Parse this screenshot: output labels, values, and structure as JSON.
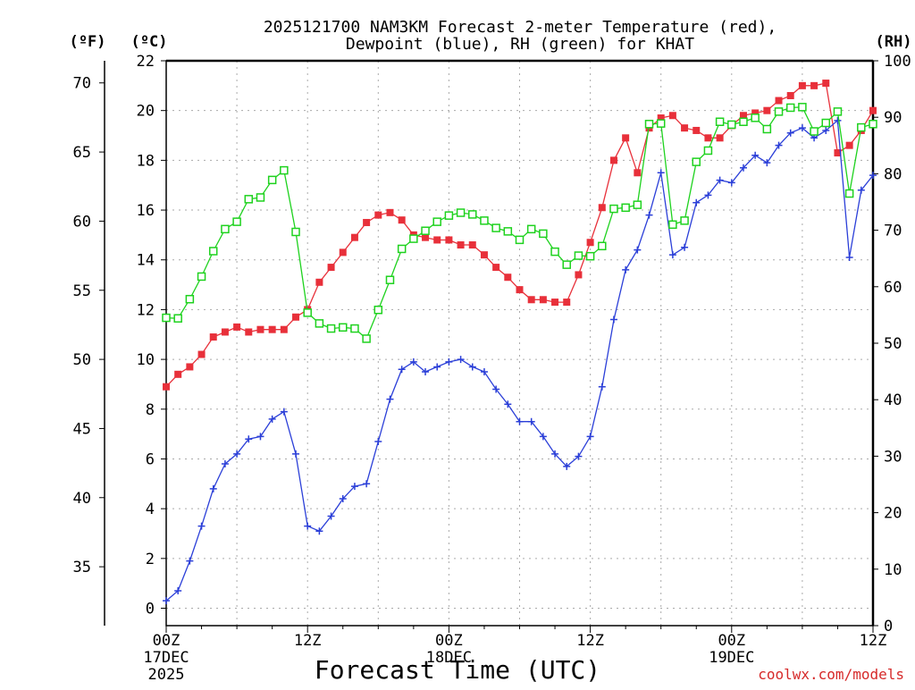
{
  "chart_data": {
    "type": "line",
    "title": "2025121700 NAM3KM Forecast 2-meter Temperature (red),",
    "subtitle": "Dewpoint (blue), RH (green) for KHAT",
    "xlabel": "Forecast Time (UTC)",
    "credit": "coolwx.com/models",
    "units": {
      "f": "(ºF)",
      "c": "(ºC)",
      "rh": "(RH)"
    },
    "x_ticks": [
      {
        "hour": 0,
        "lines": [
          "00Z",
          "17DEC",
          "2025"
        ]
      },
      {
        "hour": 12,
        "lines": [
          "12Z"
        ]
      },
      {
        "hour": 24,
        "lines": [
          "00Z",
          "18DEC"
        ]
      },
      {
        "hour": 36,
        "lines": [
          "12Z"
        ]
      },
      {
        "hour": 48,
        "lines": [
          "00Z",
          "19DEC"
        ]
      },
      {
        "hour": 60,
        "lines": [
          "12Z"
        ]
      }
    ],
    "xlim": [
      0,
      60
    ],
    "ylim_c": [
      -0.7,
      22
    ],
    "ylim_rh": [
      0,
      100
    ],
    "c_ticks": [
      "0",
      "2",
      "4",
      "6",
      "8",
      "10",
      "12",
      "14",
      "16",
      "18",
      "20",
      "22"
    ],
    "f_ticks": [
      "35",
      "40",
      "45",
      "50",
      "55",
      "60",
      "65",
      "70"
    ],
    "rh_ticks": [
      "0",
      "10",
      "20",
      "30",
      "40",
      "50",
      "60",
      "70",
      "80",
      "90",
      "100"
    ],
    "series": [
      {
        "name": "Temperature",
        "axis": "c",
        "color": "#e8303a",
        "marker": "filled-square",
        "x": [
          0,
          1,
          2,
          3,
          4,
          5,
          6,
          7,
          8,
          9,
          10,
          11,
          12,
          13,
          14,
          15,
          16,
          17,
          18,
          19,
          20,
          21,
          22,
          23,
          24,
          25,
          26,
          27,
          28,
          29,
          30,
          31,
          32,
          33,
          34,
          35,
          36,
          37,
          38,
          39,
          40,
          41,
          42,
          43,
          44,
          45,
          46,
          47,
          48,
          49,
          50,
          51,
          52,
          53,
          54,
          55,
          56,
          57,
          58,
          59,
          60
        ],
        "values": [
          8.9,
          9.4,
          9.7,
          10.2,
          10.9,
          11.1,
          11.3,
          11.1,
          11.2,
          11.2,
          11.2,
          11.7,
          12.0,
          13.1,
          13.7,
          14.3,
          14.9,
          15.5,
          15.8,
          15.9,
          15.6,
          15.0,
          14.9,
          14.8,
          14.8,
          14.6,
          14.6,
          14.2,
          13.7,
          13.3,
          12.8,
          12.4,
          12.4,
          12.3,
          12.3,
          13.4,
          14.7,
          16.1,
          18.0,
          18.9,
          17.5,
          19.3,
          19.7,
          19.8,
          19.3,
          19.2,
          18.9,
          18.9,
          19.4,
          19.8,
          19.9,
          20.0,
          20.4,
          20.6,
          21.0,
          21.0,
          21.1,
          18.3,
          18.6,
          19.2,
          20.0
        ]
      },
      {
        "name": "Dewpoint",
        "axis": "c",
        "color": "#2b3fd8",
        "marker": "plus",
        "x": [
          0,
          1,
          2,
          3,
          4,
          5,
          6,
          7,
          8,
          9,
          10,
          11,
          12,
          13,
          14,
          15,
          16,
          17,
          18,
          19,
          20,
          21,
          22,
          23,
          24,
          25,
          26,
          27,
          28,
          29,
          30,
          31,
          32,
          33,
          34,
          35,
          36,
          37,
          38,
          39,
          40,
          41,
          42,
          43,
          44,
          45,
          46,
          47,
          48,
          49,
          50,
          51,
          52,
          53,
          54,
          55,
          56,
          57,
          58,
          59,
          60
        ],
        "values": [
          0.3,
          0.7,
          1.9,
          3.3,
          4.8,
          5.8,
          6.2,
          6.8,
          6.9,
          7.6,
          7.9,
          6.2,
          3.3,
          3.1,
          3.7,
          4.4,
          4.9,
          5.0,
          6.7,
          8.4,
          9.6,
          9.9,
          9.5,
          9.7,
          9.9,
          10.0,
          9.7,
          9.5,
          8.8,
          8.2,
          7.5,
          7.5,
          6.9,
          6.2,
          5.7,
          6.1,
          6.9,
          8.9,
          11.6,
          13.6,
          14.4,
          15.8,
          17.5,
          14.2,
          14.5,
          16.3,
          16.6,
          17.2,
          17.1,
          17.7,
          18.2,
          17.9,
          18.6,
          19.1,
          19.3,
          18.9,
          19.2,
          19.6,
          14.1,
          16.8,
          17.4
        ]
      },
      {
        "name": "RH",
        "axis": "rh",
        "color": "#1ed21e",
        "marker": "open-square",
        "x": [
          0,
          1,
          2,
          3,
          4,
          5,
          6,
          7,
          8,
          9,
          10,
          11,
          12,
          13,
          14,
          15,
          16,
          17,
          18,
          19,
          20,
          21,
          22,
          23,
          24,
          25,
          26,
          27,
          28,
          29,
          30,
          31,
          32,
          33,
          34,
          35,
          36,
          37,
          38,
          39,
          40,
          41,
          42,
          43,
          44,
          45,
          46,
          47,
          48,
          49,
          50,
          51,
          52,
          53,
          54,
          55,
          56,
          57,
          58,
          59,
          60
        ],
        "values": [
          54.5,
          54.4,
          57.8,
          61.8,
          66.3,
          70.2,
          71.5,
          75.5,
          75.8,
          78.9,
          80.6,
          69.7,
          55.4,
          53.5,
          52.6,
          52.8,
          52.6,
          50.8,
          55.9,
          61.2,
          66.7,
          68.5,
          69.9,
          71.5,
          72.6,
          73.1,
          72.8,
          71.7,
          70.4,
          69.8,
          68.3,
          70.2,
          69.4,
          66.2,
          63.9,
          65.5,
          65.4,
          67.2,
          73.8,
          74.0,
          74.5,
          88.8,
          88.9,
          71.0,
          71.7,
          82.1,
          84.1,
          89.2,
          88.7,
          89.2,
          89.9,
          87.9,
          91.0,
          91.7,
          91.8,
          87.5,
          89.0,
          91.0,
          76.5,
          88.2,
          88.8
        ]
      }
    ]
  }
}
